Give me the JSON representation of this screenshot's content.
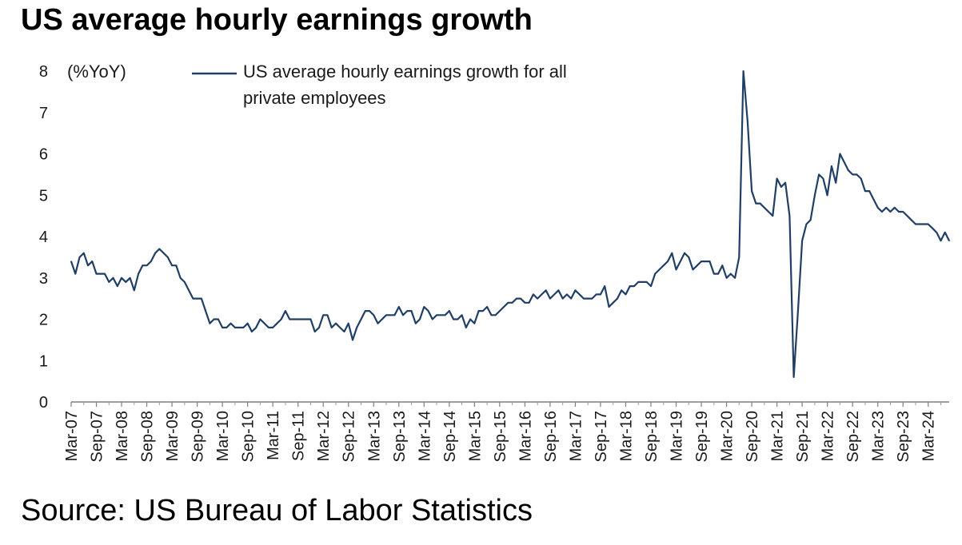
{
  "title": "US average hourly earnings growth",
  "source": "Source: US Bureau of Labor Statistics",
  "chart_data": {
    "type": "line",
    "title": "US average hourly earnings growth",
    "ylabel": "(%YoY)",
    "ylim": [
      0,
      8
    ],
    "yticks": [
      0,
      1,
      2,
      3,
      4,
      5,
      6,
      7,
      8
    ],
    "xtick_labels": [
      "Mar-07",
      "Sep-07",
      "Mar-08",
      "Sep-08",
      "Mar-09",
      "Sep-09",
      "Mar-10",
      "Sep-10",
      "Mar-11",
      "Sep-11",
      "Mar-12",
      "Sep-12",
      "Mar-13",
      "Sep-13",
      "Mar-14",
      "Sep-14",
      "Mar-15",
      "Sep-15",
      "Mar-16",
      "Sep-16",
      "Mar-17",
      "Sep-17",
      "Mar-18",
      "Sep-18",
      "Mar-19",
      "Sep-19",
      "Mar-20",
      "Sep-20",
      "Mar-21",
      "Sep-21",
      "Mar-22",
      "Sep-22",
      "Mar-23",
      "Sep-23",
      "Mar-24"
    ],
    "x_start": "Mar-07",
    "x_end": "Jun-24",
    "grid": false,
    "legend_position": "top",
    "series": [
      {
        "name": "US average hourly earnings growth for all private employees",
        "color": "#1f3f66",
        "values": [
          3.4,
          3.1,
          3.5,
          3.6,
          3.3,
          3.4,
          3.1,
          3.1,
          3.1,
          2.9,
          3.0,
          2.8,
          3.0,
          2.9,
          3.0,
          2.7,
          3.1,
          3.3,
          3.3,
          3.4,
          3.6,
          3.7,
          3.6,
          3.5,
          3.3,
          3.3,
          3.0,
          2.9,
          2.7,
          2.5,
          2.5,
          2.5,
          2.2,
          1.9,
          2.0,
          2.0,
          1.8,
          1.8,
          1.9,
          1.8,
          1.8,
          1.8,
          1.9,
          1.7,
          1.8,
          2.0,
          1.9,
          1.8,
          1.8,
          1.9,
          2.0,
          2.2,
          2.0,
          2.0,
          2.0,
          2.0,
          2.0,
          2.0,
          1.7,
          1.8,
          2.1,
          2.1,
          1.8,
          1.9,
          1.8,
          1.7,
          1.9,
          1.5,
          1.8,
          2.0,
          2.2,
          2.2,
          2.1,
          1.9,
          2.0,
          2.1,
          2.1,
          2.1,
          2.3,
          2.1,
          2.2,
          2.2,
          1.9,
          2.0,
          2.3,
          2.2,
          2.0,
          2.1,
          2.1,
          2.1,
          2.2,
          2.0,
          2.0,
          2.1,
          1.8,
          2.0,
          1.9,
          2.2,
          2.2,
          2.3,
          2.1,
          2.1,
          2.2,
          2.3,
          2.4,
          2.4,
          2.5,
          2.5,
          2.4,
          2.4,
          2.6,
          2.5,
          2.6,
          2.7,
          2.5,
          2.6,
          2.7,
          2.5,
          2.6,
          2.5,
          2.7,
          2.6,
          2.5,
          2.5,
          2.5,
          2.6,
          2.6,
          2.8,
          2.3,
          2.4,
          2.5,
          2.7,
          2.6,
          2.8,
          2.8,
          2.9,
          2.9,
          2.9,
          2.8,
          3.1,
          3.2,
          3.3,
          3.4,
          3.6,
          3.2,
          3.4,
          3.6,
          3.5,
          3.2,
          3.3,
          3.4,
          3.4,
          3.4,
          3.1,
          3.1,
          3.3,
          3.0,
          3.1,
          3.0,
          3.5,
          8.0,
          6.8,
          5.1,
          4.8,
          4.8,
          4.7,
          4.6,
          4.5,
          5.4,
          5.2,
          5.3,
          4.5,
          0.6,
          2.2,
          3.9,
          4.3,
          4.4,
          5.0,
          5.5,
          5.4,
          5.0,
          5.7,
          5.3,
          6.0,
          5.8,
          5.6,
          5.5,
          5.5,
          5.4,
          5.1,
          5.1,
          4.9,
          4.7,
          4.6,
          4.7,
          4.6,
          4.7,
          4.6,
          4.6,
          4.5,
          4.4,
          4.3,
          4.3,
          4.3,
          4.3,
          4.2,
          4.1,
          3.9,
          4.1,
          3.9
        ]
      }
    ]
  }
}
